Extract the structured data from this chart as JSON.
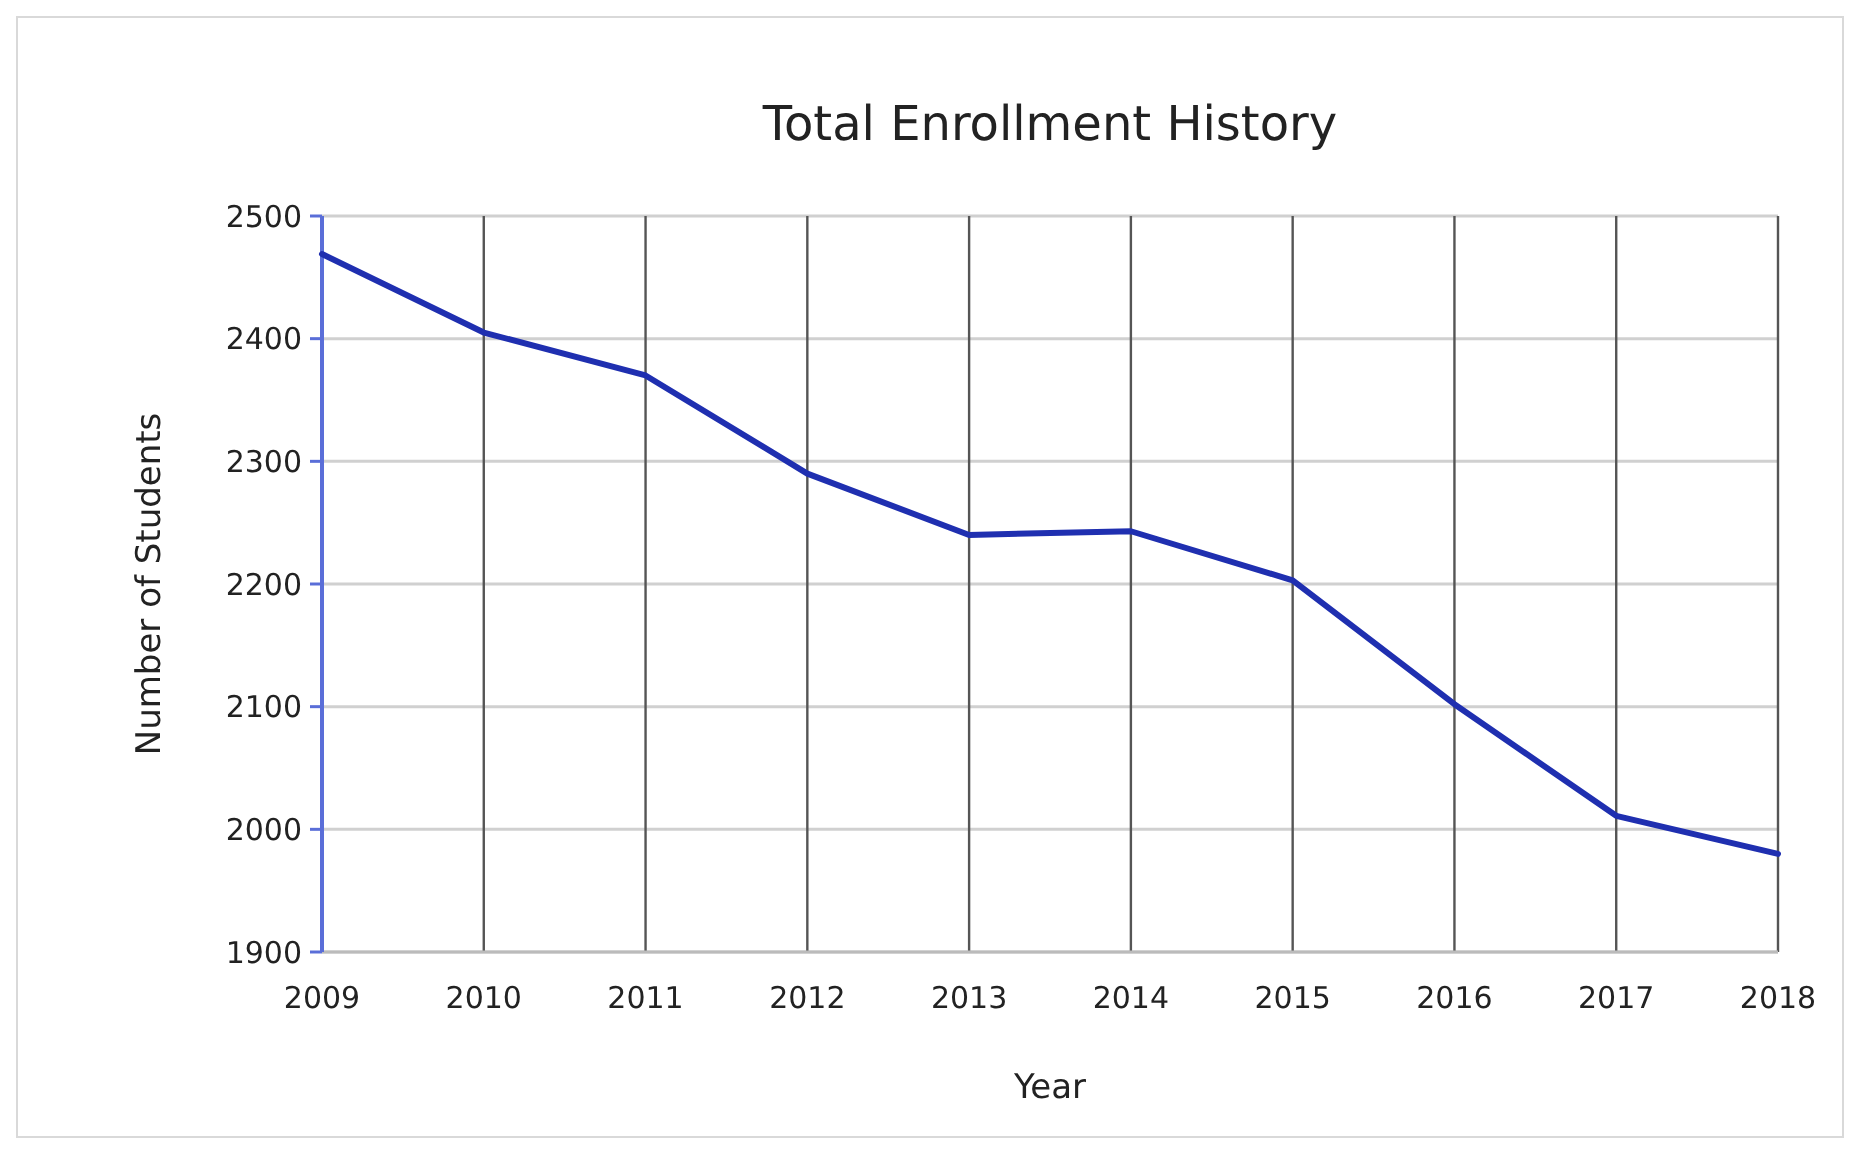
{
  "chart_data": {
    "type": "line",
    "title": "Total Enrollment History",
    "xlabel": "Year",
    "ylabel": "Number of Students",
    "x": [
      2009,
      2010,
      2011,
      2012,
      2013,
      2014,
      2015,
      2016,
      2017,
      2018
    ],
    "series": [
      {
        "color": "#1f2fb0",
        "values": [
          2469,
          2405,
          2370,
          2290,
          2240,
          2243,
          2203,
          2102,
          2011,
          1980
        ]
      }
    ],
    "xlim": [
      2009,
      2018
    ],
    "xticks": [
      2009,
      2010,
      2011,
      2012,
      2013,
      2014,
      2015,
      2016,
      2017,
      2018
    ],
    "ylim": [
      1900,
      2500
    ],
    "yticks": [
      1900,
      2000,
      2100,
      2200,
      2300,
      2400,
      2500
    ],
    "grid": true,
    "marker": "none",
    "line_style": "solid"
  }
}
